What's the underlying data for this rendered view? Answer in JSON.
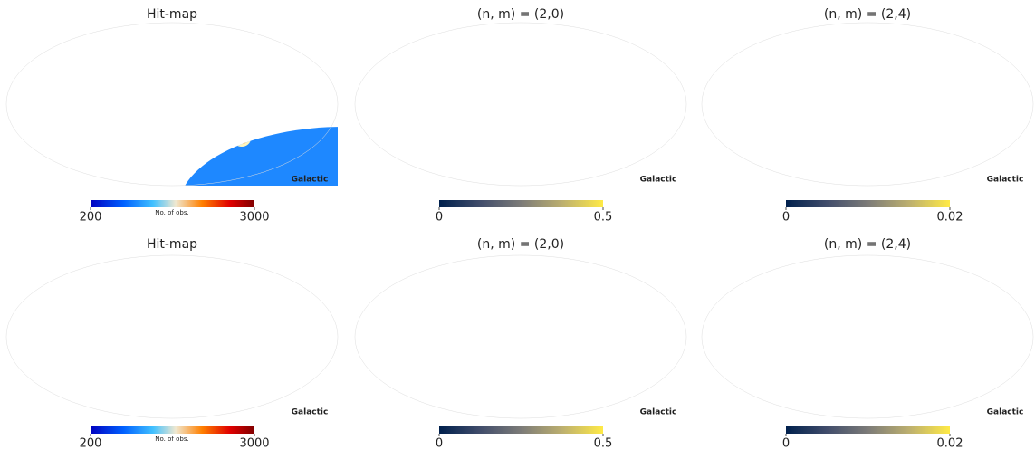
{
  "chart_data": [
    {
      "type": "map",
      "title": "Hit-map",
      "projection": "mollweide",
      "coord": "Galactic",
      "colormap": "jet",
      "clabel": "No. of obs.",
      "clim": [
        200,
        3000
      ],
      "cticks": [
        200,
        3000
      ]
    },
    {
      "type": "map",
      "title": "(n, m) = (2,0)",
      "projection": "mollweide",
      "coord": "Galactic",
      "colormap": "cividis",
      "clim": [
        0,
        0.5
      ],
      "cticks": [
        0,
        0.5
      ]
    },
    {
      "type": "map",
      "title": "(n, m) = (2,4)",
      "projection": "mollweide",
      "coord": "Galactic",
      "colormap": "cividis",
      "clim": [
        0,
        0.02
      ],
      "cticks": [
        0,
        0.02
      ]
    },
    {
      "type": "map",
      "title": "Hit-map",
      "projection": "mollweide",
      "coord": "Galactic",
      "colormap": "jet",
      "clabel": "No. of obs.",
      "clim": [
        200,
        3000
      ],
      "cticks": [
        200,
        3000
      ]
    },
    {
      "type": "map",
      "title": "(n, m) = (2,0)",
      "projection": "mollweide",
      "coord": "Galactic",
      "colormap": "cividis",
      "clim": [
        0,
        0.5
      ],
      "cticks": [
        0,
        0.5
      ]
    },
    {
      "type": "map",
      "title": "(n, m) = (2,4)",
      "projection": "mollweide",
      "coord": "Galactic",
      "colormap": "cividis",
      "clim": [
        0,
        0.02
      ],
      "cticks": [
        0,
        0.02
      ]
    }
  ]
}
